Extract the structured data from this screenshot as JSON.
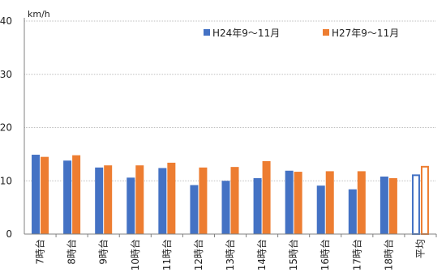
{
  "chart_data": {
    "type": "bar",
    "unit_label": "km/h",
    "ylim": [
      0,
      40
    ],
    "yticks": [
      "0",
      "10",
      "20",
      "30",
      "40"
    ],
    "grid": true,
    "legend_position": "top-right",
    "categories": [
      "7時台",
      "8時台",
      "9時台",
      "10時台",
      "11時台",
      "12時台",
      "13時台",
      "14時台",
      "15時台",
      "16時台",
      "17時台",
      "18時台",
      "平均"
    ],
    "series": [
      {
        "name": "H24年9〜11月",
        "color": "#4472C4",
        "values": [
          14.9,
          13.8,
          12.5,
          10.6,
          12.4,
          9.2,
          10.0,
          10.5,
          11.9,
          9.1,
          8.4,
          10.8,
          11.2
        ]
      },
      {
        "name": "H27年9〜11月",
        "color": "#ED7D31",
        "values": [
          14.5,
          14.8,
          12.9,
          12.9,
          13.4,
          12.5,
          12.6,
          13.7,
          11.7,
          11.8,
          11.8,
          10.5,
          12.8
        ]
      }
    ],
    "outlined_categories": [
      "平均"
    ]
  }
}
